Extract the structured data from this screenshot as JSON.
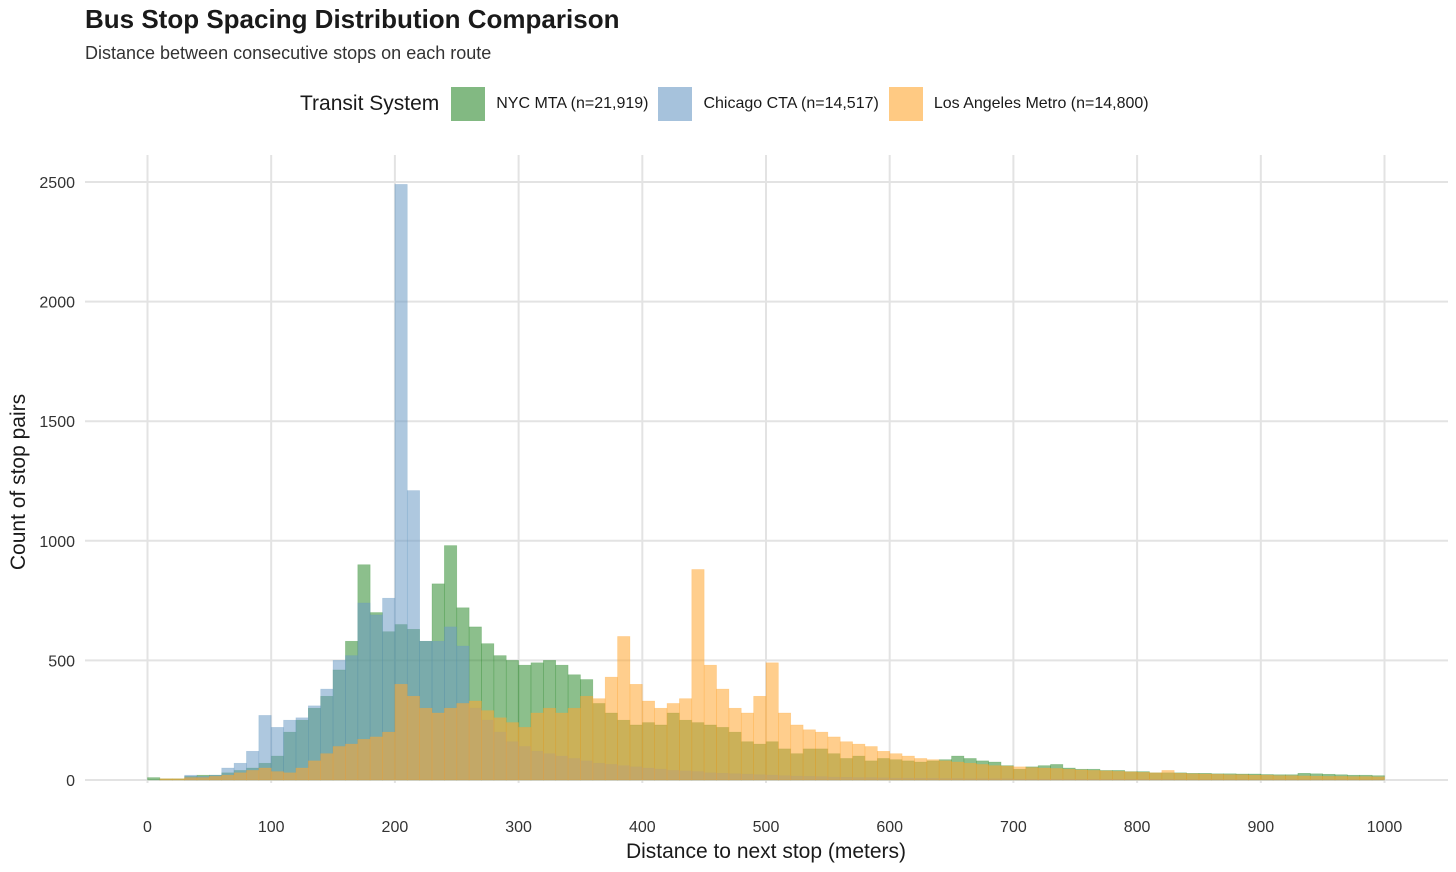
{
  "chart_data": {
    "type": "bar",
    "title": "Bus Stop Spacing Distribution Comparison",
    "subtitle": "Distance between consecutive stops on each route",
    "xlabel": "Distance to next stop (meters)",
    "ylabel": "Count of stop pairs",
    "xlim": [
      0,
      1000
    ],
    "ylim": [
      0,
      2500
    ],
    "xticks": [
      "0",
      "100",
      "200",
      "300",
      "400",
      "500",
      "600",
      "700",
      "800",
      "900",
      "1000"
    ],
    "yticks": [
      "0",
      "500",
      "1000",
      "1500",
      "2000",
      "2500"
    ],
    "bin_width": 10,
    "bin_start": 0,
    "legend_title": "Transit System",
    "legend_position": "top",
    "series": [
      {
        "name": "NYC MTA (n=21,919)",
        "color": "#2e8b2e",
        "values": [
          10,
          5,
          5,
          15,
          20,
          20,
          30,
          40,
          50,
          70,
          100,
          200,
          250,
          300,
          350,
          460,
          580,
          900,
          700,
          620,
          650,
          630,
          580,
          820,
          980,
          720,
          640,
          570,
          520,
          500,
          480,
          490,
          500,
          480,
          440,
          420,
          320,
          280,
          250,
          230,
          240,
          230,
          280,
          250,
          240,
          230,
          220,
          200,
          160,
          150,
          160,
          130,
          110,
          130,
          130,
          110,
          90,
          100,
          80,
          90,
          85,
          80,
          75,
          80,
          85,
          100,
          90,
          80,
          75,
          60,
          45,
          55,
          60,
          65,
          50,
          45,
          45,
          40,
          40,
          35,
          35,
          30,
          30,
          30,
          28,
          28,
          26,
          26,
          25,
          25,
          23,
          22,
          22,
          28,
          26,
          24,
          22,
          20,
          20,
          18
        ]
      },
      {
        "name": "Chicago CTA (n=14,517)",
        "color": "#6b9ac4",
        "values": [
          0,
          0,
          0,
          20,
          15,
          20,
          50,
          70,
          120,
          270,
          220,
          250,
          260,
          310,
          380,
          500,
          520,
          740,
          690,
          760,
          2490,
          1210,
          580,
          580,
          640,
          560,
          300,
          250,
          200,
          160,
          140,
          120,
          110,
          100,
          90,
          80,
          70,
          65,
          60,
          55,
          50,
          45,
          40,
          38,
          35,
          30,
          28,
          26,
          24,
          22,
          20,
          18,
          16,
          15,
          14,
          12,
          11,
          10,
          10,
          9,
          8,
          8,
          7,
          7,
          6,
          6,
          5,
          5,
          5,
          5,
          4,
          4,
          4,
          4,
          4,
          3,
          3,
          3,
          3,
          3,
          3,
          3,
          3,
          2,
          2,
          2,
          2,
          2,
          2,
          2,
          2,
          2,
          2,
          2,
          2,
          2,
          2,
          2,
          2,
          2
        ]
      },
      {
        "name": "Los Angeles Metro (n=14,800)",
        "color": "#ffa630",
        "values": [
          0,
          5,
          5,
          10,
          10,
          15,
          20,
          30,
          40,
          50,
          35,
          30,
          50,
          80,
          110,
          140,
          150,
          170,
          180,
          200,
          400,
          350,
          300,
          280,
          300,
          320,
          330,
          290,
          260,
          240,
          220,
          280,
          300,
          280,
          300,
          350,
          340,
          430,
          600,
          400,
          330,
          300,
          320,
          340,
          880,
          480,
          380,
          300,
          280,
          350,
          490,
          280,
          230,
          210,
          200,
          180,
          160,
          150,
          140,
          120,
          110,
          100,
          90,
          85,
          80,
          75,
          70,
          65,
          60,
          58,
          55,
          52,
          50,
          48,
          45,
          42,
          40,
          38,
          36,
          34,
          32,
          30,
          40,
          28,
          26,
          25,
          24,
          22,
          22,
          20,
          20,
          18,
          18,
          17,
          16,
          15,
          15,
          14,
          14,
          13
        ]
      }
    ]
  }
}
